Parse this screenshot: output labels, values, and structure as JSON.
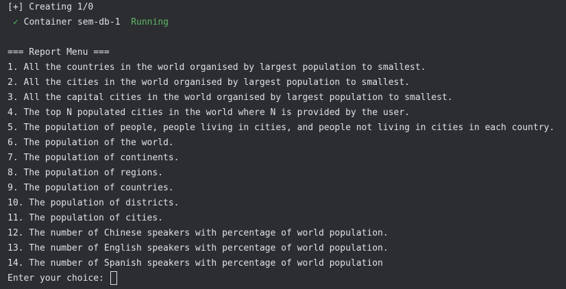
{
  "compose": {
    "progress_text": "[+] Creating 1/0",
    "container_line": {
      "check_glyph": "✓",
      "label": "Container sem-db-1",
      "status": "Running",
      "status_color": "#5fb865"
    }
  },
  "menu": {
    "title": "=== Report Menu ===",
    "items": [
      "1. All the countries in the world organised by largest population to smallest.",
      "2. All the cities in the world organised by largest population to smallest.",
      "3. All the capital cities in the world organised by largest population to smallest.",
      "4. The top N populated cities in the world where N is provided by the user.",
      "5. The population of people, people living in cities, and people not living in cities in each country.",
      "6. The population of the world.",
      "7. The population of continents.",
      "8. The population of regions.",
      "9. The population of countries.",
      "10. The population of districts.",
      "11. The population of cities.",
      "12. The number of Chinese speakers with percentage of world population.",
      "13. The number of English speakers with percentage of world population.",
      "14. The number of Spanish speakers with percentage of world population"
    ],
    "prompt_label": "Enter your choice: ",
    "input_value": ""
  },
  "theme": {
    "background": "#2b2d30",
    "text": "#dfe1e5",
    "accent_green": "#5fb865"
  }
}
